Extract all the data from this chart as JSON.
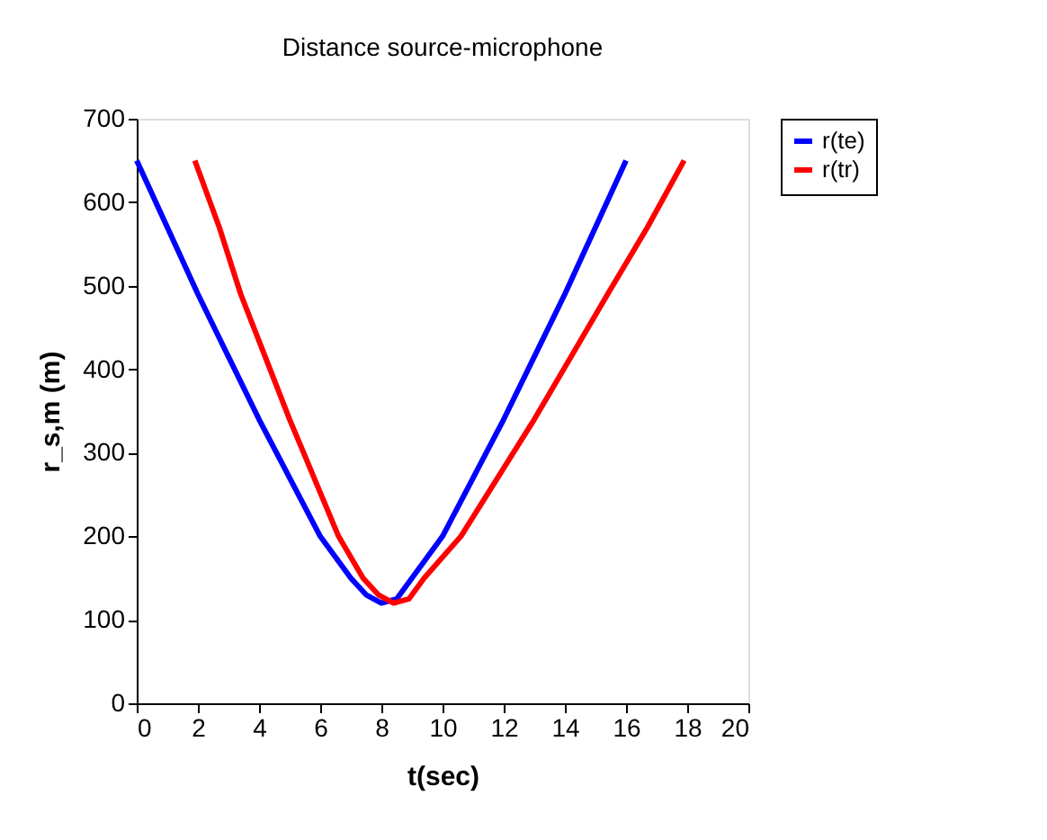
{
  "chart_data": {
    "type": "line",
    "title": "Distance source-microphone",
    "xlabel": "t(sec)",
    "ylabel": "r_s,m  (m)",
    "series": [
      {
        "name": "r(te)",
        "color": "#0000ff",
        "x": [
          0,
          1,
          2,
          3,
          4,
          5,
          6,
          7,
          7.5,
          8,
          8.5,
          9,
          10,
          11,
          12,
          13,
          14,
          15,
          16
        ],
        "values": [
          650,
          570,
          490,
          415,
          340,
          270,
          200,
          150,
          130,
          120,
          125,
          150,
          200,
          270,
          340,
          415,
          490,
          570,
          650
        ]
      },
      {
        "name": "r(tr)",
        "color": "#ff0000",
        "x": [
          1.9,
          2.7,
          3.4,
          4.2,
          5.0,
          5.8,
          6.6,
          7.4,
          7.9,
          8.4,
          8.9,
          9.4,
          10.6,
          11.8,
          13.0,
          14.2,
          15.4,
          16.7,
          17.9
        ],
        "values": [
          650,
          570,
          490,
          415,
          340,
          270,
          200,
          150,
          130,
          120,
          125,
          150,
          200,
          270,
          340,
          415,
          490,
          570,
          650
        ]
      }
    ],
    "xlim": [
      0,
      20
    ],
    "xticks": [
      0,
      2,
      4,
      6,
      8,
      10,
      12,
      14,
      16,
      18,
      20
    ],
    "ylim": [
      0,
      700
    ],
    "yticks": [
      0,
      100,
      200,
      300,
      400,
      500,
      600,
      700
    ],
    "grid": false,
    "legend": "right",
    "marker": "none",
    "line_style": "solid"
  }
}
